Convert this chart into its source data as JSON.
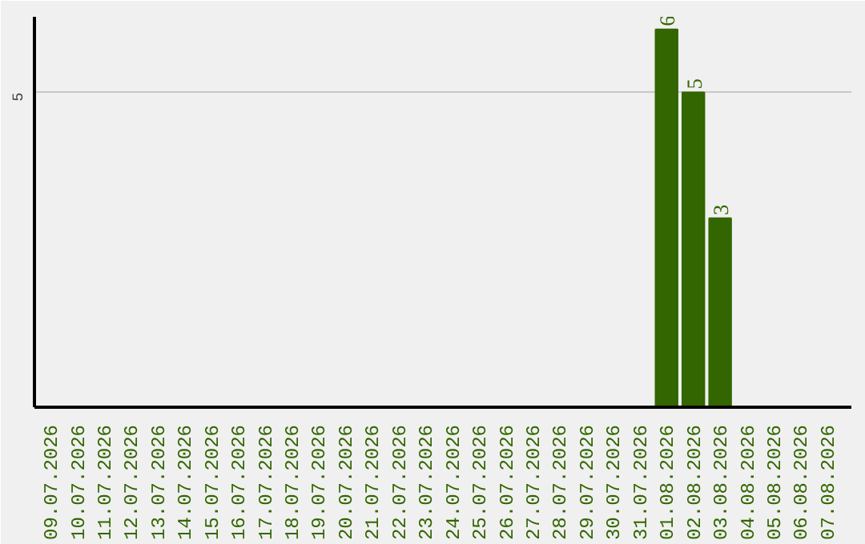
{
  "chart_data": {
    "type": "bar",
    "categories": [
      "09.07.2026",
      "10.07.2026",
      "11.07.2026",
      "12.07.2026",
      "13.07.2026",
      "14.07.2026",
      "15.07.2026",
      "16.07.2026",
      "17.07.2026",
      "18.07.2026",
      "19.07.2026",
      "20.07.2026",
      "21.07.2026",
      "22.07.2026",
      "23.07.2026",
      "24.07.2026",
      "25.07.2026",
      "26.07.2026",
      "27.07.2026",
      "28.07.2026",
      "29.07.2026",
      "30.07.2026",
      "31.07.2026",
      "01.08.2026",
      "02.08.2026",
      "03.08.2026",
      "04.08.2026",
      "05.08.2026",
      "06.08.2026",
      "07.08.2026"
    ],
    "values": [
      null,
      null,
      null,
      null,
      null,
      null,
      null,
      null,
      null,
      null,
      null,
      null,
      null,
      null,
      null,
      null,
      null,
      null,
      null,
      null,
      null,
      null,
      null,
      6,
      5,
      3,
      null,
      null,
      null,
      null
    ],
    "color": "#336600",
    "ylim": [
      0,
      6.2
    ],
    "yticks": [
      5
    ],
    "grid": "y",
    "data_labels": true
  }
}
